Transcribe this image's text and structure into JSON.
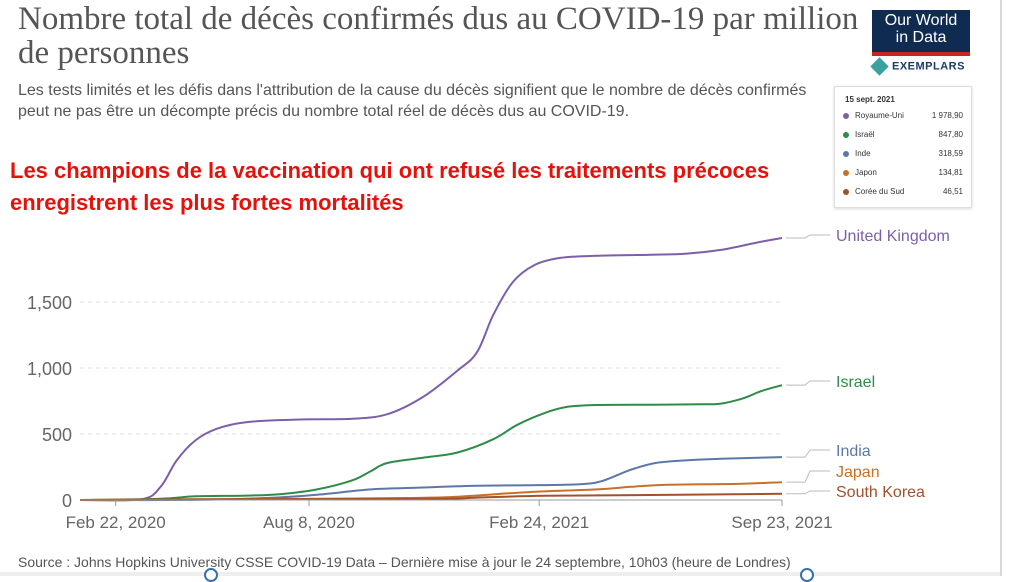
{
  "title": "Nombre total de décès confirmés dus au COVID-19 par million de personnes",
  "subtitle": "Les tests limités et les défis dans l'attribution de la cause du décès signifient que le nombre de décès confirmés peut ne pas être un décompte précis du nombre total réel de décès dus au COVID-19.",
  "headline": "Les champions de la vaccination qui ont refusé les traitements précoces enregistrent les plus fortes mortalités",
  "logo": {
    "line1": "Our World",
    "line2": "in Data",
    "bg": "#0f2b52",
    "accent": "#c4271d"
  },
  "exemplars": {
    "label": "EXEMPLARS",
    "icon": "exemplars-diamond-icon"
  },
  "tooltip": {
    "date": "15 sept. 2021",
    "rows": [
      {
        "name": "Royaume-Uni",
        "value": "1 978,90",
        "color": "#7d5fa8"
      },
      {
        "name": "Israël",
        "value": "847,80",
        "color": "#2e8b4a"
      },
      {
        "name": "Inde",
        "value": "318,59",
        "color": "#5a78a8"
      },
      {
        "name": "Japon",
        "value": "134,81",
        "color": "#c7702a"
      },
      {
        "name": "Corée du Sud",
        "value": "46,51",
        "color": "#a1522d"
      }
    ]
  },
  "source": "Source : Johns Hopkins University CSSE COVID-19 Data – Dernière mise à jour le 24 septembre, 10h03 (heure de Londres)",
  "chart_data": {
    "type": "line",
    "title": "",
    "xlabel": "",
    "ylabel": "",
    "x_ticks": [
      "Feb 22, 2020",
      "Aug 8, 2020",
      "Feb 24, 2021",
      "Sep 23, 2021"
    ],
    "y_ticks": [
      "0",
      "500",
      "1,000",
      "1,500"
    ],
    "xlim": [
      "2020-01-22",
      "2021-09-23"
    ],
    "ylim": [
      0,
      2000
    ],
    "grid": "horizontal dashed",
    "legend": "inline labels at line ends (right)",
    "series": [
      {
        "name": "United Kingdom",
        "color": "#7d5fa8",
        "x": [
          "2020-01-22",
          "2020-03-15",
          "2020-04-01",
          "2020-04-15",
          "2020-05-01",
          "2020-05-20",
          "2020-06-15",
          "2020-08-01",
          "2020-09-15",
          "2020-10-15",
          "2020-11-15",
          "2020-12-15",
          "2021-01-01",
          "2021-01-15",
          "2021-02-01",
          "2021-02-20",
          "2021-03-15",
          "2021-04-15",
          "2021-06-01",
          "2021-07-01",
          "2021-08-01",
          "2021-09-01",
          "2021-09-23"
        ],
        "y": [
          0,
          5,
          100,
          300,
          450,
          540,
          590,
          610,
          615,
          650,
          780,
          980,
          1120,
          1400,
          1650,
          1780,
          1835,
          1850,
          1858,
          1865,
          1895,
          1950,
          1985
        ]
      },
      {
        "name": "Israel",
        "color": "#2e8b4a",
        "x": [
          "2020-01-22",
          "2020-04-01",
          "2020-05-01",
          "2020-06-15",
          "2020-07-15",
          "2020-08-15",
          "2020-09-15",
          "2020-10-01",
          "2020-10-15",
          "2020-11-15",
          "2020-12-15",
          "2021-01-15",
          "2021-02-05",
          "2021-03-01",
          "2021-03-20",
          "2021-04-15",
          "2021-06-01",
          "2021-07-15",
          "2021-08-01",
          "2021-08-20",
          "2021-09-05",
          "2021-09-23"
        ],
        "y": [
          0,
          10,
          28,
          33,
          45,
          80,
          150,
          220,
          280,
          320,
          360,
          460,
          570,
          660,
          705,
          720,
          722,
          725,
          730,
          770,
          825,
          870
        ]
      },
      {
        "name": "India",
        "color": "#5a78a8",
        "x": [
          "2020-01-22",
          "2020-05-01",
          "2020-07-01",
          "2020-08-15",
          "2020-10-01",
          "2020-11-15",
          "2021-01-01",
          "2021-02-15",
          "2021-04-01",
          "2021-04-20",
          "2021-05-15",
          "2021-06-05",
          "2021-07-01",
          "2021-08-01",
          "2021-09-23"
        ],
        "y": [
          0,
          1,
          15,
          40,
          80,
          95,
          108,
          112,
          120,
          145,
          230,
          280,
          300,
          312,
          325
        ]
      },
      {
        "name": "Japan",
        "color": "#c7702a",
        "x": [
          "2020-01-22",
          "2020-05-01",
          "2020-08-01",
          "2020-11-01",
          "2020-12-15",
          "2021-02-15",
          "2021-04-15",
          "2021-05-15",
          "2021-06-15",
          "2021-08-15",
          "2021-09-23"
        ],
        "y": [
          0,
          5,
          8,
          15,
          25,
          60,
          80,
          100,
          115,
          122,
          135
        ]
      },
      {
        "name": "South Korea",
        "color": "#a1522d",
        "x": [
          "2020-01-22",
          "2020-04-01",
          "2020-08-01",
          "2020-12-01",
          "2021-01-01",
          "2021-03-01",
          "2021-06-01",
          "2021-09-23"
        ],
        "y": [
          0,
          4,
          6,
          10,
          18,
          32,
          38,
          47
        ]
      }
    ]
  }
}
